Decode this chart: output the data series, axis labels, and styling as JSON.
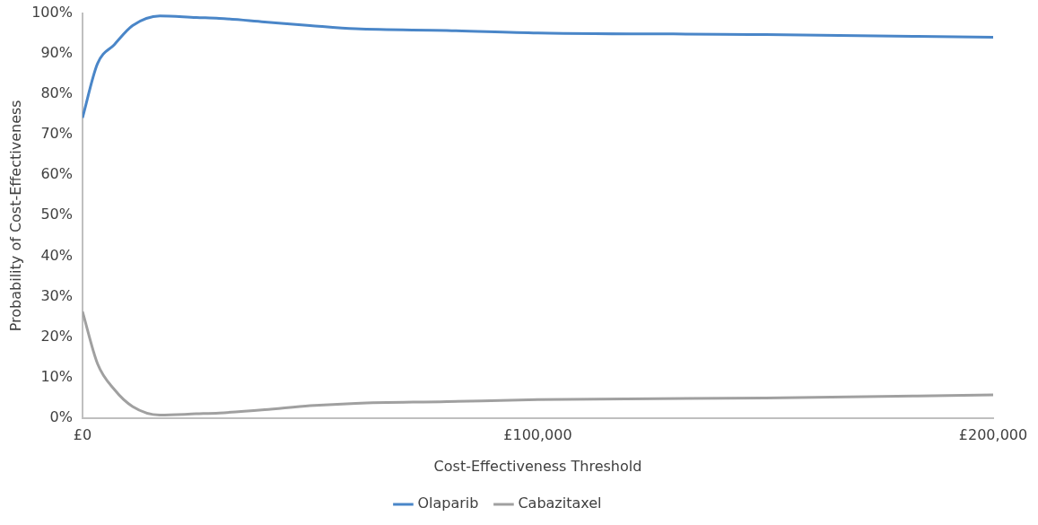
{
  "chart_data": {
    "type": "line",
    "xlabel": "Cost-Effectiveness Threshold",
    "ylabel": "Probability of Cost-Effectiveness",
    "x": [
      0,
      3300,
      7000,
      11000,
      17000,
      25000,
      30000,
      40000,
      50000,
      60000,
      80000,
      100000,
      150000,
      200000
    ],
    "series": [
      {
        "name": "Olaparib",
        "color": "#4a86c8",
        "values": [
          74.2,
          87.6,
          92.3,
          97,
          99.4,
          99,
          98.8,
          97.9,
          97,
          96.2,
          95.8,
          95.2,
          94.8,
          94.1
        ]
      },
      {
        "name": "Cabazitaxel",
        "color": "#a0a0a0",
        "values": [
          26.3,
          13.4,
          7,
          2.8,
          0.7,
          1,
          1.2,
          2,
          3,
          3.6,
          4,
          4.5,
          4.9,
          5.7
        ]
      }
    ],
    "xlim": [
      0,
      200000
    ],
    "xticks": [
      {
        "value": 0,
        "label": "£0"
      },
      {
        "value": 100000,
        "label": "£100,000"
      },
      {
        "value": 200000,
        "label": "£200,000"
      }
    ],
    "ylim": [
      0,
      100
    ],
    "yticks": [
      {
        "value": 0,
        "label": "0%"
      },
      {
        "value": 10,
        "label": "10%"
      },
      {
        "value": 20,
        "label": "20%"
      },
      {
        "value": 30,
        "label": "30%"
      },
      {
        "value": 40,
        "label": "40%"
      },
      {
        "value": 50,
        "label": "50%"
      },
      {
        "value": 60,
        "label": "60%"
      },
      {
        "value": 70,
        "label": "70%"
      },
      {
        "value": 80,
        "label": "80%"
      },
      {
        "value": 90,
        "label": "90%"
      },
      {
        "value": 100,
        "label": "100%"
      }
    ],
    "grid": false,
    "legend": "bottom",
    "marker": "none",
    "line_style": "solid"
  }
}
